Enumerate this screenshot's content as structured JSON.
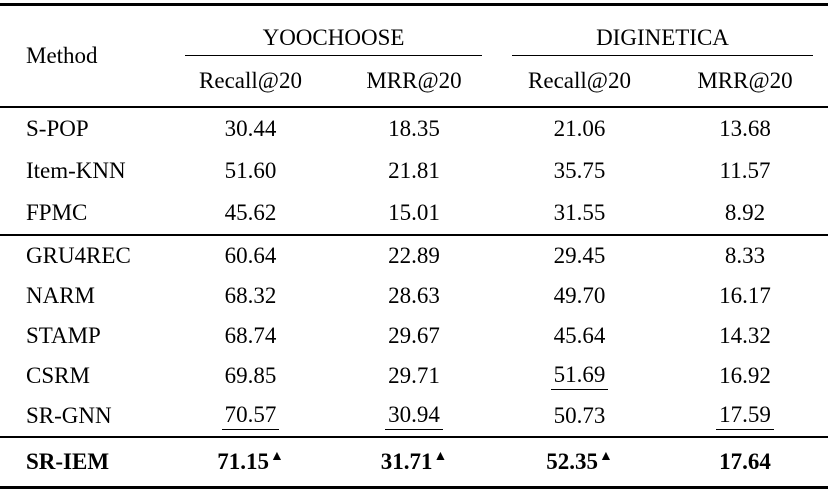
{
  "page": {
    "background": "#ffffff",
    "text_color": "#000000",
    "rule_color": "#000000"
  },
  "table": {
    "method_header": "Method",
    "marker_char": "▲",
    "groups": [
      {
        "label": "YOOCHOOSE",
        "subcolumns": [
          "Recall@20",
          "MRR@20"
        ]
      },
      {
        "label": "DIGINETICA",
        "subcolumns": [
          "Recall@20",
          "MRR@20"
        ]
      }
    ],
    "sections": [
      {
        "name": "traditional-baselines",
        "rows": [
          {
            "method": "S-POP",
            "bold": false,
            "cells": [
              {
                "value": "30.44"
              },
              {
                "value": "18.35"
              },
              {
                "value": "21.06"
              },
              {
                "value": "13.68"
              }
            ]
          },
          {
            "method": "Item-KNN",
            "bold": false,
            "cells": [
              {
                "value": "51.60"
              },
              {
                "value": "21.81"
              },
              {
                "value": "35.75"
              },
              {
                "value": "11.57"
              }
            ]
          },
          {
            "method": "FPMC",
            "bold": false,
            "cells": [
              {
                "value": "45.62"
              },
              {
                "value": "15.01"
              },
              {
                "value": "31.55"
              },
              {
                "value": "8.92"
              }
            ]
          }
        ]
      },
      {
        "name": "neural-baselines",
        "rows": [
          {
            "method": "GRU4REC",
            "bold": false,
            "cells": [
              {
                "value": "60.64"
              },
              {
                "value": "22.89"
              },
              {
                "value": "29.45"
              },
              {
                "value": "8.33"
              }
            ]
          },
          {
            "method": "NARM",
            "bold": false,
            "cells": [
              {
                "value": "68.32"
              },
              {
                "value": "28.63"
              },
              {
                "value": "49.70"
              },
              {
                "value": "16.17"
              }
            ]
          },
          {
            "method": "STAMP",
            "bold": false,
            "cells": [
              {
                "value": "68.74"
              },
              {
                "value": "29.67"
              },
              {
                "value": "45.64"
              },
              {
                "value": "14.32"
              }
            ]
          },
          {
            "method": "CSRM",
            "bold": false,
            "cells": [
              {
                "value": "69.85"
              },
              {
                "value": "29.71"
              },
              {
                "value": "51.69",
                "underline": true
              },
              {
                "value": "16.92"
              }
            ]
          },
          {
            "method": "SR-GNN",
            "bold": false,
            "cells": [
              {
                "value": "70.57",
                "underline": true
              },
              {
                "value": "30.94",
                "underline": true
              },
              {
                "value": "50.73"
              },
              {
                "value": "17.59",
                "underline": true
              }
            ]
          }
        ]
      },
      {
        "name": "proposed-model",
        "rows": [
          {
            "method": "SR-IEM",
            "bold": true,
            "cells": [
              {
                "value": "71.15",
                "marker": true
              },
              {
                "value": "31.71",
                "marker": true
              },
              {
                "value": "52.35",
                "marker": true
              },
              {
                "value": "17.64"
              }
            ]
          }
        ]
      }
    ]
  }
}
